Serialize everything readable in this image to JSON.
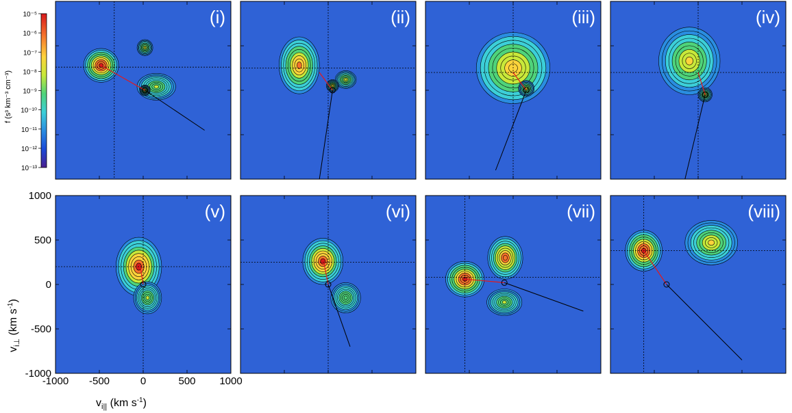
{
  "colorbar": {
    "label": "f (s³ km⁻³ cm⁻³)",
    "ticks": [
      "10⁻⁵",
      "10⁻⁶",
      "10⁻⁷",
      "10⁻⁸",
      "10⁻⁹",
      "10⁻¹⁰",
      "10⁻¹¹",
      "10⁻¹²",
      "10⁻¹³"
    ],
    "colors": [
      "#d7191c",
      "#f4722b",
      "#fdd33b",
      "#c8e83a",
      "#4fd37a",
      "#3ccfd8",
      "#2a8de0",
      "#1b4ad8",
      "#4a1f8f"
    ]
  },
  "axes": {
    "xlabel": "v",
    "xlabel_sub": "i||",
    "xlabel_unit": " (km s",
    "xlabel_exp": "-1",
    "xlabel_end": ")",
    "ylabel": "v",
    "ylabel_sub": "i⊥",
    "ylabel_unit": " (km s",
    "ylabel_exp": "-1",
    "ylabel_end": ")"
  },
  "chart_data": {
    "type": "heatmap",
    "panels": [
      {
        "label": "(i)",
        "peaks": [
          [
            -480,
            280,
            1.0,
            200,
            190
          ],
          [
            20,
            480,
            0.55,
            90,
            90
          ],
          [
            150,
            40,
            0.45,
            220,
            150
          ],
          [
            20,
            0,
            0.5,
            60,
            60
          ]
        ],
        "cross": [
          -330,
          260
        ],
        "ref_line": [
          [
            -480,
            280
          ],
          [
            20,
            0
          ],
          [
            700,
            -450
          ]
        ]
      },
      {
        "label": "(ii)",
        "peaks": [
          [
            -330,
            280,
            0.8,
            230,
            320
          ],
          [
            200,
            120,
            0.5,
            120,
            100
          ],
          [
            50,
            50,
            0.6,
            70,
            70
          ]
        ],
        "cross": [
          0,
          250
        ],
        "ref_line": [
          [
            -100,
            200
          ],
          [
            50,
            0
          ],
          [
            -100,
            -1000
          ]
        ]
      },
      {
        "label": "(iii)",
        "peaks": [
          [
            0,
            250,
            0.7,
            420,
            400
          ],
          [
            150,
            20,
            0.5,
            90,
            90
          ]
        ],
        "cross": [
          0,
          200
        ],
        "ref_line": [
          [
            0,
            200
          ],
          [
            150,
            0
          ],
          [
            -200,
            -900
          ]
        ]
      },
      {
        "label": "(iv)",
        "peaks": [
          [
            -100,
            330,
            0.65,
            350,
            380
          ],
          [
            80,
            -50,
            0.55,
            80,
            80
          ]
        ],
        "cross": [
          0,
          200
        ],
        "ref_line": [
          [
            0,
            200
          ],
          [
            80,
            -50
          ],
          [
            -150,
            -1000
          ]
        ]
      },
      {
        "label": "(v)",
        "peaks": [
          [
            -50,
            200,
            0.95,
            260,
            330
          ],
          [
            50,
            -150,
            0.45,
            160,
            180
          ]
        ],
        "cross": [
          0,
          200
        ],
        "ref_line": [
          [
            -30,
            180
          ],
          [
            0,
            0
          ]
        ]
      },
      {
        "label": "(vi)",
        "peaks": [
          [
            -60,
            260,
            0.95,
            230,
            260
          ],
          [
            200,
            -150,
            0.4,
            170,
            170
          ]
        ],
        "cross": [
          0,
          250
        ],
        "ref_line": [
          [
            -50,
            250
          ],
          [
            0,
            0
          ],
          [
            250,
            -700
          ]
        ]
      },
      {
        "label": "(vii)",
        "peaks": [
          [
            -550,
            60,
            1.0,
            220,
            200
          ],
          [
            -90,
            300,
            0.9,
            200,
            240
          ],
          [
            -100,
            -200,
            0.45,
            200,
            150
          ]
        ],
        "cross": [
          -550,
          80
        ],
        "ref_line": [
          [
            -550,
            60
          ],
          [
            -100,
            20
          ],
          [
            800,
            -300
          ]
        ]
      },
      {
        "label": "(viii)",
        "peaks": [
          [
            -620,
            380,
            1.0,
            210,
            230
          ],
          [
            150,
            470,
            0.6,
            300,
            250
          ]
        ],
        "cross": [
          -620,
          380
        ],
        "ref_line": [
          [
            -620,
            380
          ],
          [
            -360,
            0
          ],
          [
            500,
            -850
          ]
        ]
      }
    ],
    "xlim": [
      -1000,
      1000
    ],
    "ylim": [
      -1000,
      1000
    ],
    "xticks": [
      -1000,
      -500,
      0,
      500,
      1000
    ],
    "yticks": [
      1000,
      500,
      0,
      -500,
      -1000
    ],
    "xtick_labels": [
      "-1000",
      "-500",
      "0",
      "500",
      "1000"
    ],
    "ytick_labels": [
      "1000",
      "500",
      "0",
      "-500",
      "-1000"
    ]
  }
}
